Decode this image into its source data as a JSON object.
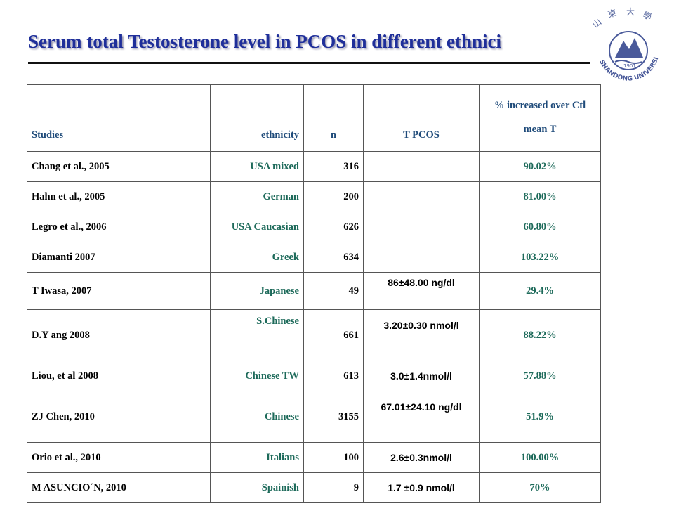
{
  "title": "Serum total Testosterone level in PCOS in different ethnici",
  "logo": {
    "text": "SHANDONG UNIVERSITY",
    "year": "1901"
  },
  "table": {
    "headers": {
      "studies": "Studies",
      "ethnicity": "ethnicity",
      "n": "n",
      "t_pcos": "T   PCOS",
      "pct_line1": "% increased over Ctl",
      "pct_line2": "mean T"
    },
    "rows": [
      {
        "study": "Chang et al., 2005",
        "ethnicity": "USA mixed",
        "n": "316",
        "t_pcos": "",
        "pct": "90.02%"
      },
      {
        "study": "Hahn et al., 2005",
        "ethnicity": "German",
        "n": "200",
        "t_pcos": "",
        "pct": "81.00%"
      },
      {
        "study": "Legro et al., 2006",
        "ethnicity": "USA Caucasian",
        "n": "626",
        "t_pcos": "",
        "pct": "60.80%"
      },
      {
        "study": "Diamanti 2007",
        "ethnicity": "Greek",
        "n": "634",
        "t_pcos": "",
        "pct": "103.22%"
      },
      {
        "study": "T Iwasa, 2007",
        "ethnicity": "Japanese",
        "n": "49",
        "t_pcos": "86±48.00 ng/dl",
        "pct": "29.4%"
      },
      {
        "study": "D.Y ang 2008",
        "ethnicity": "S.Chinese",
        "n": "661",
        "t_pcos": "3.20±0.30 nmol/l",
        "pct": "88.22%"
      },
      {
        "study": "Liou, et al 2008",
        "ethnicity": "Chinese TW",
        "n": "613",
        "t_pcos": "3.0±1.4nmol/l",
        "pct": "57.88%"
      },
      {
        "study": "ZJ Chen, 2010",
        "ethnicity": "Chinese",
        "n": "3155",
        "t_pcos": "67.01±24.10 ng/dl",
        "pct": "51.9%"
      },
      {
        "study": "Orio et al., 2010",
        "ethnicity": "Italians",
        "n": "100",
        "t_pcos": "2.6±0.3nmol/l",
        "pct": "100.00%"
      },
      {
        "study": "M ASUNCIO´N, 2010",
        "ethnicity": "Spainish",
        "n": "9",
        "t_pcos": "1.7 ±0.9 nmol/l",
        "pct": "70%"
      }
    ]
  }
}
